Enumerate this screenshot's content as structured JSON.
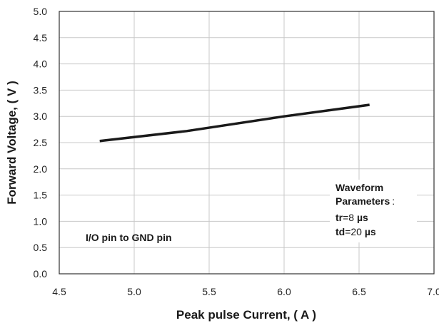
{
  "chart_data": {
    "type": "line",
    "xlabel": "Peak pulse Current, ( A )",
    "ylabel": "Forward Voltage, ( V )",
    "xlim": [
      4.5,
      7.0
    ],
    "ylim": [
      0.0,
      5.0
    ],
    "x_ticks": [
      "4.5",
      "5.0",
      "5.5",
      "6.0",
      "6.5",
      "7.0"
    ],
    "y_ticks": [
      "0.0",
      "0.5",
      "1.0",
      "1.5",
      "2.0",
      "2.5",
      "3.0",
      "3.5",
      "4.0",
      "4.5",
      "5.0"
    ],
    "grid": true,
    "series": [
      {
        "color": "#1a1a1a",
        "x": [
          4.77,
          5.35,
          6.0,
          6.57
        ],
        "y": [
          2.53,
          2.72,
          3.0,
          3.22
        ]
      }
    ],
    "annotations": {
      "pin_note": "I/O  pin  to  GND  pin",
      "waveform": {
        "line1": "Waveform",
        "line2": "Parameters",
        "colon": ":",
        "tr_label": "tr",
        "tr_value": "=8 ",
        "tr_unit": "µs",
        "td_label": "td",
        "td_value": "=20 ",
        "td_unit": "µs"
      }
    }
  }
}
